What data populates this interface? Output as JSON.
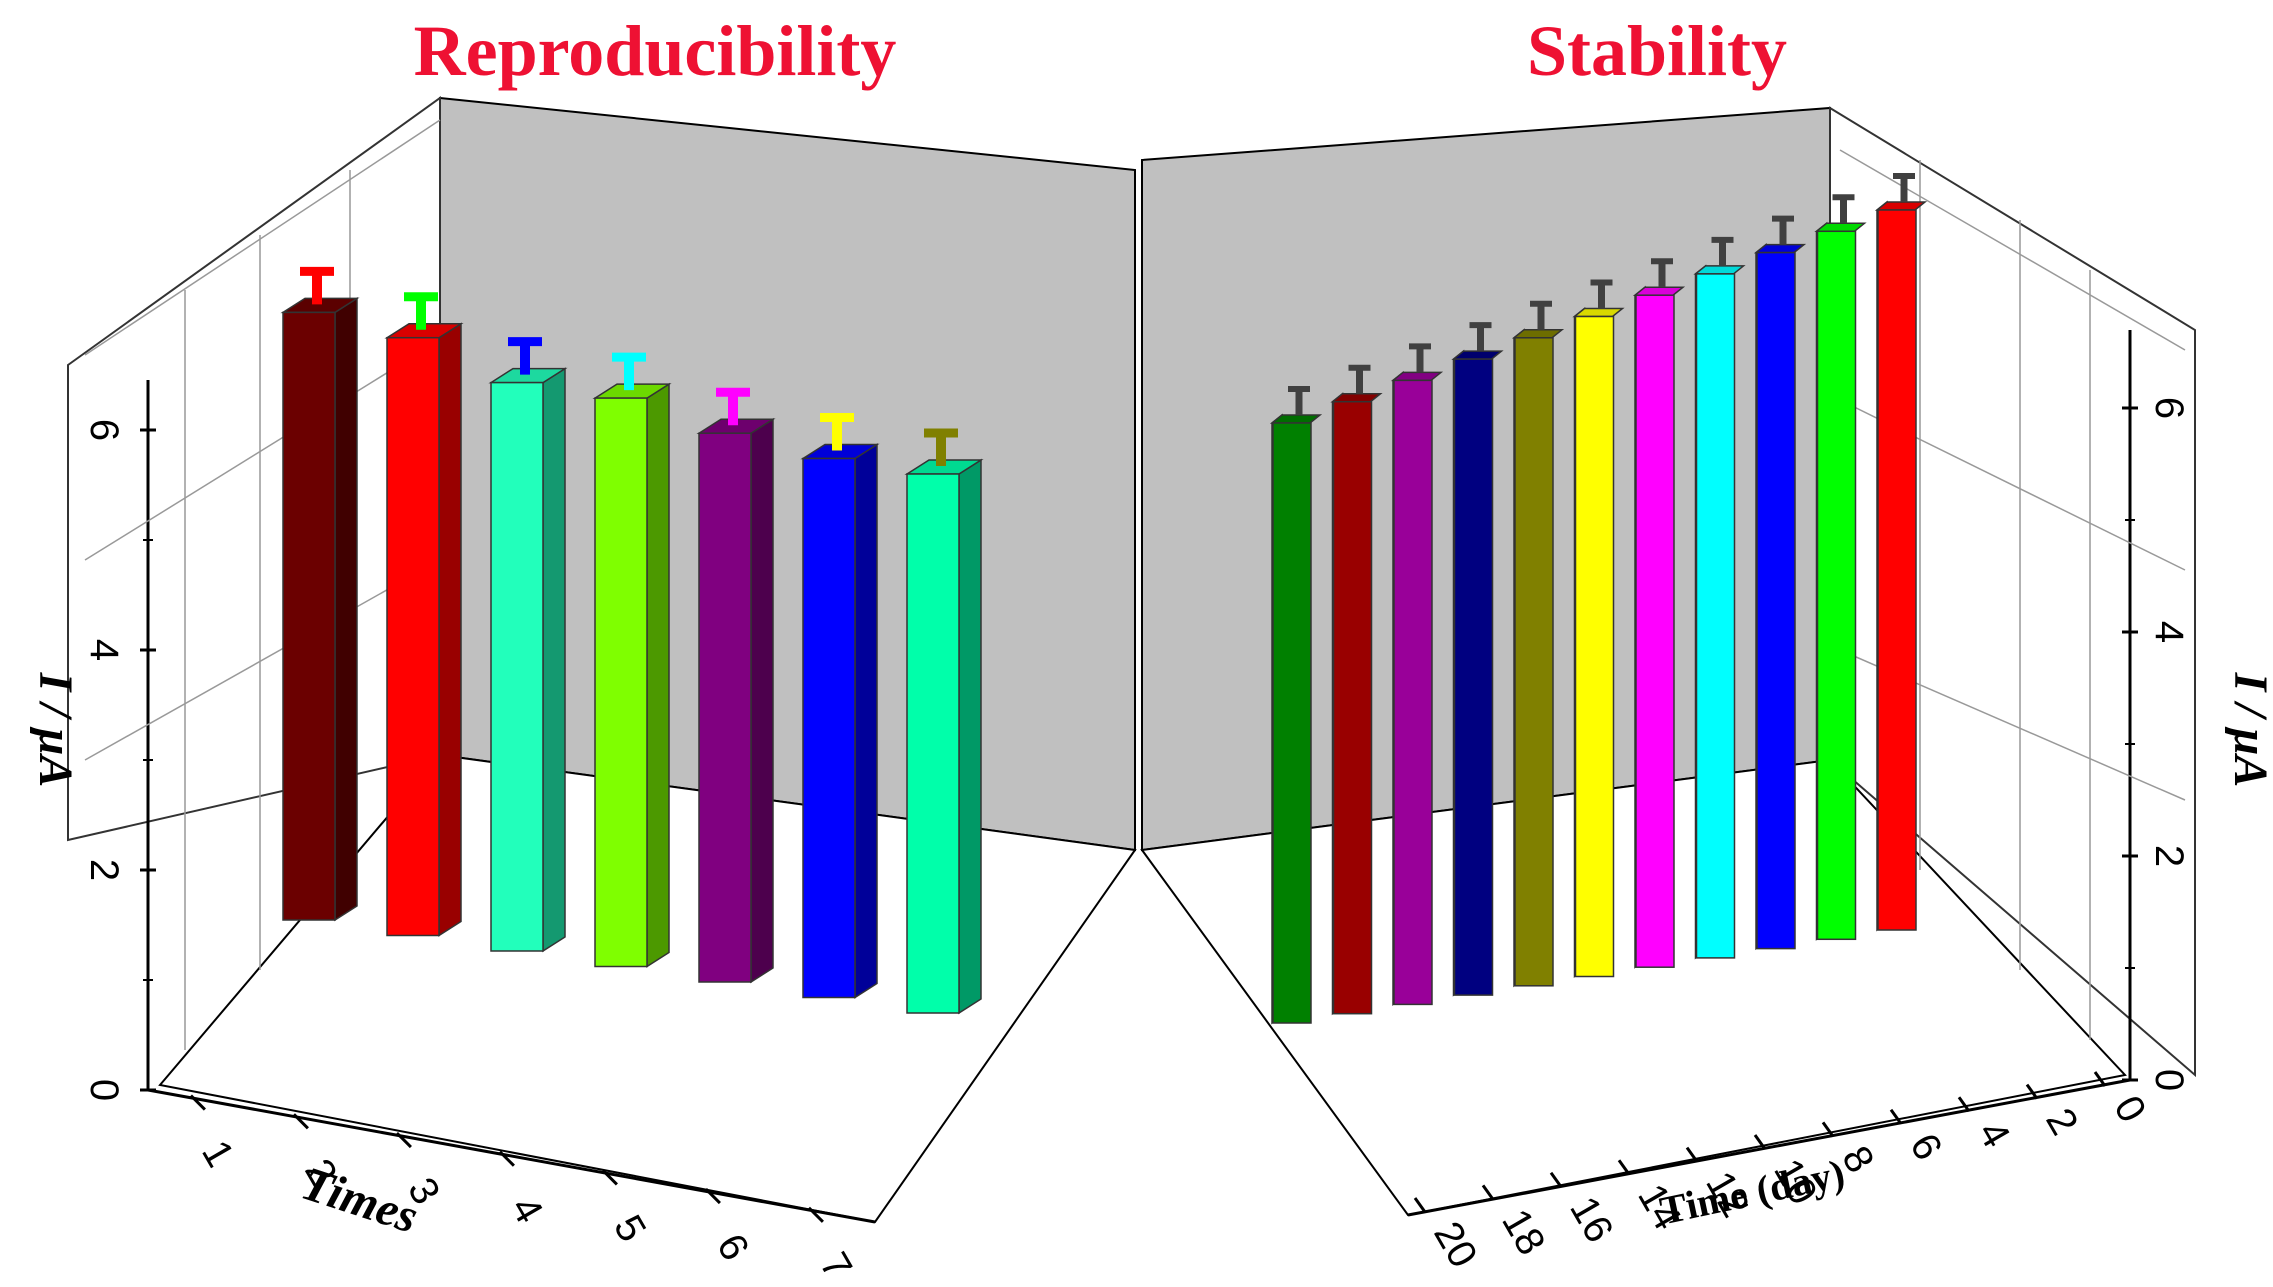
{
  "chart_data": [
    {
      "type": "bar",
      "title": "Reproducibility",
      "xlabel": "Times",
      "ylabel": "I / μA",
      "categories": [
        "1",
        "2",
        "3",
        "4",
        "5",
        "6",
        "7"
      ],
      "values": [
        6.2,
        6.1,
        5.8,
        5.8,
        5.6,
        5.5,
        5.5
      ],
      "errors": [
        0.15,
        0.15,
        0.15,
        0.15,
        0.15,
        0.15,
        0.15
      ],
      "colors": [
        "#6b0000",
        "#ff0000",
        "#22ffbb",
        "#7fff00",
        "#800080",
        "#0000ff",
        "#00ffaa"
      ],
      "error_colors": [
        "#ff0000",
        "#00ff00",
        "#0000ff",
        "#00ffff",
        "#ff00ff",
        "#ffff00",
        "#808000"
      ],
      "y_ticks": [
        "0",
        "2",
        "4",
        "6"
      ],
      "ylim": [
        0,
        6.5
      ]
    },
    {
      "type": "bar",
      "title": "Stability",
      "xlabel": "Time (day)",
      "ylabel": "I / μA",
      "categories": [
        "20",
        "18",
        "16",
        "14",
        "12",
        "10",
        "8",
        "6",
        "4",
        "2",
        "0"
      ],
      "x_ticks": [
        "20",
        "18",
        "16",
        "14",
        "12",
        "10",
        "8",
        "6",
        "4",
        "2",
        "0"
      ],
      "values": [
        5.0,
        5.1,
        5.2,
        5.3,
        5.4,
        5.5,
        5.6,
        5.7,
        5.8,
        5.9,
        6.0
      ],
      "errors": [
        0.2,
        0.2,
        0.2,
        0.2,
        0.2,
        0.2,
        0.2,
        0.2,
        0.2,
        0.2,
        0.2
      ],
      "colors": [
        "#008000",
        "#990000",
        "#990099",
        "#000080",
        "#808000",
        "#ffff00",
        "#ff00ff",
        "#00ffff",
        "#0000ff",
        "#00ff00",
        "#ff0000"
      ],
      "error_color": "#404040",
      "y_ticks": [
        "0",
        "2",
        "4",
        "6"
      ],
      "ylim": [
        0,
        6.5
      ]
    }
  ]
}
